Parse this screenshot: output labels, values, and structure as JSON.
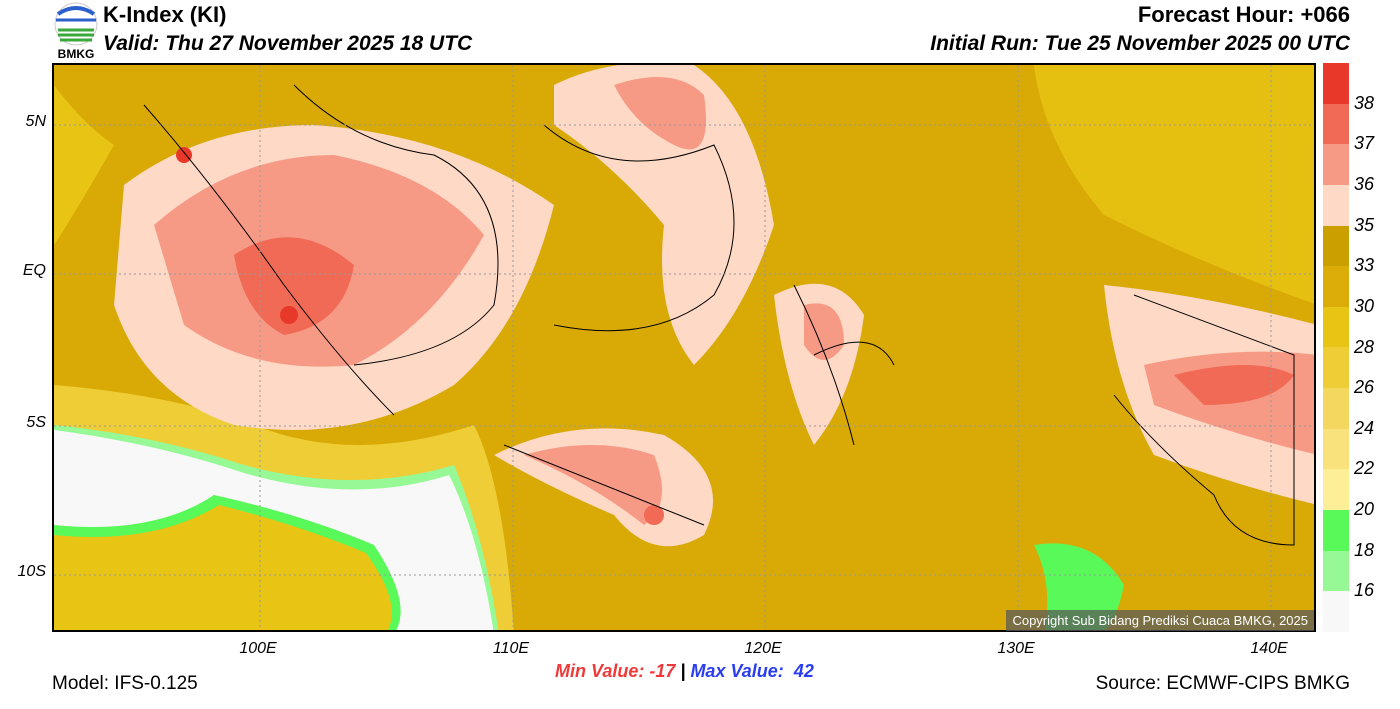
{
  "header": {
    "title": "K-Index (KI)",
    "valid": "Valid: Thu 27 November 2025 18 UTC",
    "forecast_hour": "Forecast Hour: +066",
    "initial_run": "Initial Run: Tue 25 November 2025 00 UTC",
    "logo_text": "BMKG"
  },
  "axes": {
    "lat_labels": [
      "5N",
      "EQ",
      "5S",
      "10S"
    ],
    "lon_labels": [
      "100E",
      "110E",
      "120E",
      "130E",
      "140E"
    ]
  },
  "colorbar": {
    "labels": [
      "38",
      "37",
      "36",
      "35",
      "33",
      "30",
      "28",
      "26",
      "24",
      "22",
      "20",
      "18",
      "16"
    ],
    "colors": [
      "#e8382a",
      "#f06a55",
      "#f79a85",
      "#fdd9c6",
      "#cc9f00",
      "#dcad08",
      "#e8c414",
      "#efcd36",
      "#f4d75e",
      "#f9e27c",
      "#fdee98",
      "#59f95a",
      "#96f996",
      "#f8f8f8"
    ]
  },
  "footer": {
    "model": "Model: IFS-0.125",
    "min_label": "Min Value: -17",
    "separator": "|",
    "max_label": "Max Value:  42",
    "source": "Source: ECMWF-CIPS BMKG",
    "copyright": "Copyright Sub Bidang Prediksi Cuaca BMKG, 2025"
  }
}
